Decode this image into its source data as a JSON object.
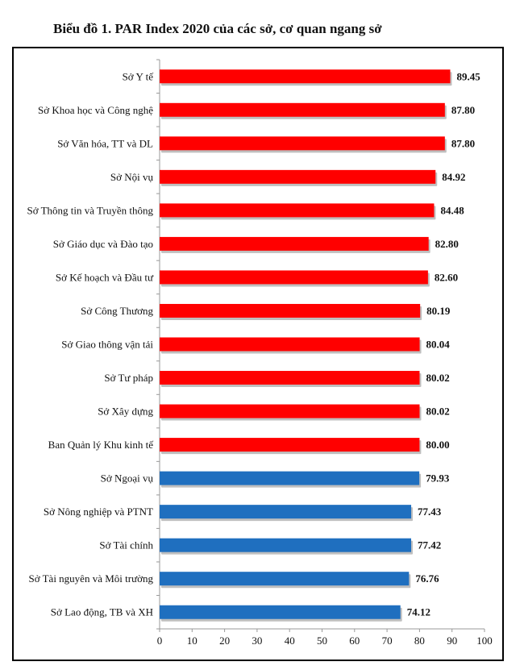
{
  "title": "Biểu đồ 1. PAR Index 2020 của các sở, cơ quan ngang sở",
  "chart_data": {
    "type": "bar",
    "orientation": "horizontal",
    "categories": [
      "Sở Y tế",
      "Sở Khoa học và Công nghệ",
      "Sở Văn hóa, TT và DL",
      "Sở Nội vụ",
      "Sở Thông tin và Truyền thông",
      "Sở Giáo dục và Đào tạo",
      "Sở Kế hoạch và Đầu tư",
      "Sở Công Thương",
      "Sở Giao thông vận tải",
      "Sở Tư pháp",
      "Sở Xây dựng",
      "Ban Quản lý Khu kinh tế",
      "Sở Ngoại vụ",
      "Sở Nông nghiệp và PTNT",
      "Sở Tài chính",
      "Sở Tài nguyên và Môi trường",
      "Sở Lao động, TB và XH"
    ],
    "values": [
      89.45,
      87.8,
      87.8,
      84.92,
      84.48,
      82.8,
      82.6,
      80.19,
      80.04,
      80.02,
      80.02,
      80.0,
      79.93,
      77.43,
      77.42,
      76.76,
      74.12
    ],
    "value_labels": [
      "89.45",
      "87.80",
      "87.80",
      "84.92",
      "84.48",
      "82.80",
      "82.60",
      "80.19",
      "80.04",
      "80.02",
      "80.02",
      "80.00",
      "79.93",
      "77.43",
      "77.42",
      "76.76",
      "74.12"
    ],
    "bar_colors": [
      "red",
      "red",
      "red",
      "red",
      "red",
      "red",
      "red",
      "red",
      "red",
      "red",
      "red",
      "red",
      "blue",
      "blue",
      "blue",
      "blue",
      "blue"
    ],
    "colors": {
      "red": "#ff0000",
      "blue": "#1f6fbf"
    },
    "xlim": [
      0,
      100
    ],
    "xticks": [
      "0",
      "10",
      "20",
      "30",
      "40",
      "50",
      "60",
      "70",
      "80",
      "90",
      "100"
    ],
    "grid": false,
    "legend": "none"
  }
}
